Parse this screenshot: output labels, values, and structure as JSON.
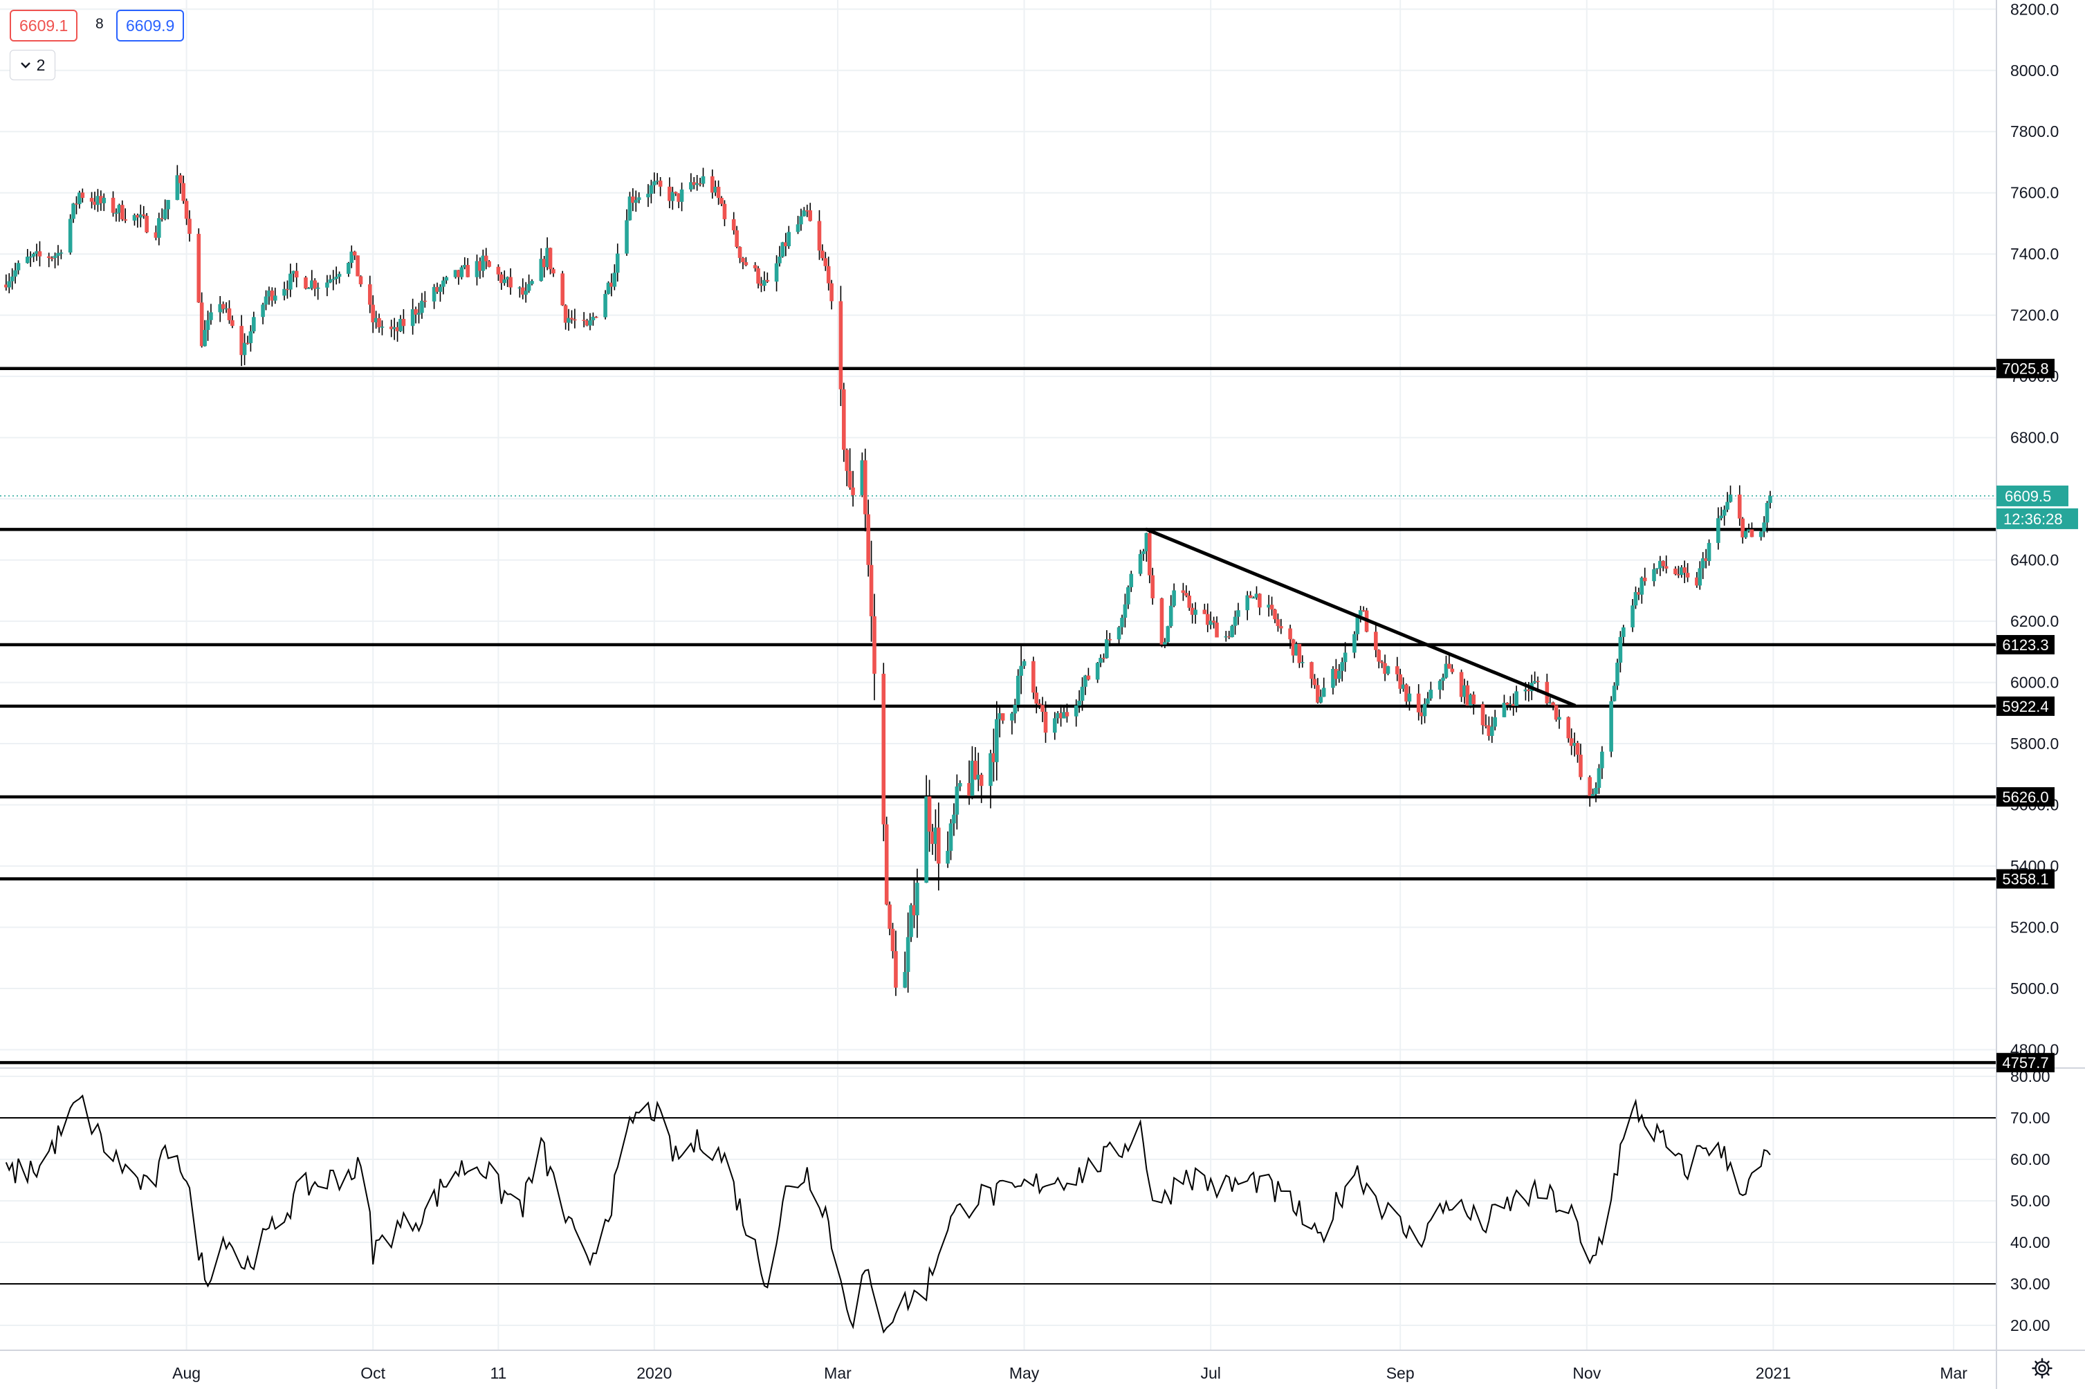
{
  "header": {
    "bid": "6609.1",
    "spread": "8",
    "ask": "6609.9",
    "indicators_count": "2"
  },
  "icons": {
    "collapse": "chevron-down-icon",
    "settings": "gear-icon"
  },
  "colors": {
    "up": "#26a69a",
    "down": "#ef5350",
    "line": "#000000",
    "grid": "#edf1f4",
    "last_price_bg": "#26a69a",
    "level_label_bg": "#000000"
  },
  "chart_data": {
    "type": "candlestick",
    "price_axis": {
      "range": [
        4740,
        8230
      ],
      "ticks": [
        4800,
        5000,
        5200,
        5400,
        5600,
        5800,
        6000,
        6200,
        6400,
        6600,
        6800,
        7000,
        7200,
        7400,
        7600,
        7800,
        8000,
        8200
      ],
      "tick_labels": [
        "4800.0",
        "5000.0",
        "5200.0",
        "5400.0",
        "5600.0",
        "5800.0",
        "6000.0",
        "6200.0",
        "6400.0",
        "6600.0",
        "6800.0",
        "7000.0",
        "7200.0",
        "7400.0",
        "7600.0",
        "7800.0",
        "8000.0",
        "8200.0"
      ]
    },
    "time_axis": {
      "start": "2019-06-01",
      "end": "2021-03-15",
      "ticks": [
        {
          "date": "2019-08-01",
          "label": "Aug"
        },
        {
          "date": "2019-10-01",
          "label": "Oct"
        },
        {
          "date": "2019-11-11",
          "label": "11"
        },
        {
          "date": "2020-01-01",
          "label": "2020"
        },
        {
          "date": "2020-03-01",
          "label": "Mar"
        },
        {
          "date": "2020-05-01",
          "label": "May"
        },
        {
          "date": "2020-07-01",
          "label": "Jul"
        },
        {
          "date": "2020-09-01",
          "label": "Sep"
        },
        {
          "date": "2020-11-01",
          "label": "Nov"
        },
        {
          "date": "2021-01-01",
          "label": "2021"
        },
        {
          "date": "2021-03-01",
          "label": "Mar"
        }
      ]
    },
    "price_path": [
      [
        "2019-06-01",
        7300
      ],
      [
        "2019-06-10",
        7380
      ],
      [
        "2019-06-20",
        7400
      ],
      [
        "2019-06-27",
        7600
      ],
      [
        "2019-07-05",
        7560
      ],
      [
        "2019-07-15",
        7520
      ],
      [
        "2019-07-22",
        7480
      ],
      [
        "2019-07-29",
        7650
      ],
      [
        "2019-08-03",
        7450
      ],
      [
        "2019-08-06",
        7120
      ],
      [
        "2019-08-12",
        7250
      ],
      [
        "2019-08-19",
        7080
      ],
      [
        "2019-08-27",
        7260
      ],
      [
        "2019-09-05",
        7320
      ],
      [
        "2019-09-15",
        7300
      ],
      [
        "2019-09-24",
        7400
      ],
      [
        "2019-10-01",
        7180
      ],
      [
        "2019-10-08",
        7140
      ],
      [
        "2019-10-17",
        7240
      ],
      [
        "2019-10-27",
        7320
      ],
      [
        "2019-11-06",
        7370
      ],
      [
        "2019-11-13",
        7310
      ],
      [
        "2019-11-20",
        7260
      ],
      [
        "2019-11-27",
        7400
      ],
      [
        "2019-12-03",
        7200
      ],
      [
        "2019-12-10",
        7150
      ],
      [
        "2019-12-18",
        7320
      ],
      [
        "2019-12-24",
        7580
      ],
      [
        "2020-01-01",
        7620
      ],
      [
        "2020-01-08",
        7580
      ],
      [
        "2020-01-18",
        7650
      ],
      [
        "2020-01-23",
        7560
      ],
      [
        "2020-01-30",
        7380
      ],
      [
        "2020-02-07",
        7290
      ],
      [
        "2020-02-14",
        7460
      ],
      [
        "2020-02-20",
        7530
      ],
      [
        "2020-02-24",
        7400
      ],
      [
        "2020-02-27",
        7330
      ],
      [
        "2020-03-01",
        7000
      ],
      [
        "2020-03-05",
        6600
      ],
      [
        "2020-03-09",
        6750
      ],
      [
        "2020-03-12",
        6200
      ],
      [
        "2020-03-15",
        5700
      ],
      [
        "2020-03-18",
        5150
      ],
      [
        "2020-03-22",
        4950
      ],
      [
        "2020-03-26",
        5300
      ],
      [
        "2020-03-30",
        5600
      ],
      [
        "2020-04-05",
        5380
      ],
      [
        "2020-04-10",
        5650
      ],
      [
        "2020-04-17",
        5700
      ],
      [
        "2020-04-24",
        5880
      ],
      [
        "2020-05-01",
        6050
      ],
      [
        "2020-05-08",
        5850
      ],
      [
        "2020-05-15",
        5900
      ],
      [
        "2020-05-24",
        6050
      ],
      [
        "2020-06-01",
        6200
      ],
      [
        "2020-06-06",
        6380
      ],
      [
        "2020-06-10",
        6480
      ],
      [
        "2020-06-14",
        6050
      ],
      [
        "2020-06-19",
        6300
      ],
      [
        "2020-06-27",
        6220
      ],
      [
        "2020-07-06",
        6150
      ],
      [
        "2020-07-15",
        6300
      ],
      [
        "2020-07-22",
        6200
      ],
      [
        "2020-07-29",
        6100
      ],
      [
        "2020-08-05",
        5950
      ],
      [
        "2020-08-14",
        6080
      ],
      [
        "2020-08-19",
        6250
      ],
      [
        "2020-08-25",
        6050
      ],
      [
        "2020-09-01",
        6000
      ],
      [
        "2020-09-07",
        5880
      ],
      [
        "2020-09-16",
        6050
      ],
      [
        "2020-09-23",
        5950
      ],
      [
        "2020-09-30",
        5850
      ],
      [
        "2020-10-08",
        5950
      ],
      [
        "2020-10-16",
        6000
      ],
      [
        "2020-10-22",
        5900
      ],
      [
        "2020-10-28",
        5800
      ],
      [
        "2020-11-01",
        5580
      ],
      [
        "2020-11-05",
        5700
      ],
      [
        "2020-11-09",
        5930
      ],
      [
        "2020-11-13",
        6200
      ],
      [
        "2020-11-20",
        6350
      ],
      [
        "2020-11-26",
        6380
      ],
      [
        "2020-12-02",
        6350
      ],
      [
        "2020-12-06",
        6300
      ],
      [
        "2020-12-12",
        6480
      ],
      [
        "2020-12-18",
        6600
      ],
      [
        "2020-12-22",
        6500
      ],
      [
        "2020-12-27",
        6450
      ],
      [
        "2020-12-31",
        6609.5
      ]
    ],
    "rsi": {
      "axis_range": [
        14,
        82
      ],
      "ticks": [
        20,
        30,
        40,
        50,
        60,
        70,
        80
      ],
      "tick_labels": [
        "20.00",
        "30.00",
        "40.00",
        "50.00",
        "60.00",
        "70.00",
        "80.00"
      ],
      "bands": [
        30,
        70
      ],
      "series": [
        [
          "2019-06-01",
          56
        ],
        [
          "2019-06-14",
          58
        ],
        [
          "2019-06-27",
          74
        ],
        [
          "2019-07-06",
          62
        ],
        [
          "2019-07-20",
          52
        ],
        [
          "2019-07-28",
          66
        ],
        [
          "2019-08-03",
          47
        ],
        [
          "2019-08-07",
          31
        ],
        [
          "2019-08-14",
          42
        ],
        [
          "2019-08-20",
          34
        ],
        [
          "2019-08-28",
          42
        ],
        [
          "2019-09-08",
          53
        ],
        [
          "2019-09-20",
          56
        ],
        [
          "2019-09-28",
          58
        ],
        [
          "2019-10-01",
          38
        ],
        [
          "2019-10-08",
          43
        ],
        [
          "2019-10-18",
          47
        ],
        [
          "2019-10-27",
          57
        ],
        [
          "2019-11-05",
          59
        ],
        [
          "2019-11-12",
          52
        ],
        [
          "2019-11-19",
          49
        ],
        [
          "2019-11-25",
          63
        ],
        [
          "2019-12-03",
          46
        ],
        [
          "2019-12-10",
          34
        ],
        [
          "2019-12-18",
          50
        ],
        [
          "2019-12-25",
          70
        ],
        [
          "2020-01-01",
          72
        ],
        [
          "2020-01-08",
          60
        ],
        [
          "2020-01-17",
          65
        ],
        [
          "2020-01-24",
          60
        ],
        [
          "2020-01-31",
          44
        ],
        [
          "2020-02-07",
          31
        ],
        [
          "2020-02-13",
          52
        ],
        [
          "2020-02-20",
          57
        ],
        [
          "2020-02-26",
          48
        ],
        [
          "2020-03-02",
          30
        ],
        [
          "2020-03-06",
          22
        ],
        [
          "2020-03-10",
          33
        ],
        [
          "2020-03-15",
          20
        ],
        [
          "2020-03-22",
          25
        ],
        [
          "2020-03-30",
          29
        ],
        [
          "2020-04-06",
          45
        ],
        [
          "2020-04-16",
          51
        ],
        [
          "2020-04-28",
          52
        ],
        [
          "2020-05-08",
          55
        ],
        [
          "2020-05-18",
          56
        ],
        [
          "2020-06-01",
          62
        ],
        [
          "2020-06-08",
          68
        ],
        [
          "2020-06-13",
          47
        ],
        [
          "2020-06-22",
          57
        ],
        [
          "2020-07-04",
          53
        ],
        [
          "2020-07-16",
          55
        ],
        [
          "2020-07-28",
          49
        ],
        [
          "2020-08-05",
          40
        ],
        [
          "2020-08-17",
          58
        ],
        [
          "2020-08-27",
          48
        ],
        [
          "2020-09-06",
          40
        ],
        [
          "2020-09-17",
          50
        ],
        [
          "2020-09-28",
          44
        ],
        [
          "2020-10-08",
          50
        ],
        [
          "2020-10-18",
          52
        ],
        [
          "2020-10-28",
          46
        ],
        [
          "2020-11-01",
          32
        ],
        [
          "2020-11-06",
          42
        ],
        [
          "2020-11-12",
          62
        ],
        [
          "2020-11-17",
          72
        ],
        [
          "2020-11-25",
          65
        ],
        [
          "2020-12-03",
          57
        ],
        [
          "2020-12-10",
          64
        ],
        [
          "2020-12-17",
          60
        ],
        [
          "2020-12-23",
          52
        ],
        [
          "2020-12-31",
          62
        ]
      ]
    },
    "horizontal_levels": [
      {
        "price": 7025.8,
        "label": "7025.8"
      },
      {
        "price": 6500,
        "label": ""
      },
      {
        "price": 6123.3,
        "label": "6123.3"
      },
      {
        "price": 5922.4,
        "label": "5922.4"
      },
      {
        "price": 5626.0,
        "label": "5626.0"
      },
      {
        "price": 5358.1,
        "label": "5358.1"
      },
      {
        "price": 4757.7,
        "label": "4757.7"
      }
    ],
    "trendline": {
      "from": [
        "2020-06-10",
        6500
      ],
      "to": [
        "2020-10-28",
        5925
      ]
    },
    "last_price": {
      "price": 6609.5,
      "label": "6609.5",
      "countdown": "12:36:28"
    }
  }
}
